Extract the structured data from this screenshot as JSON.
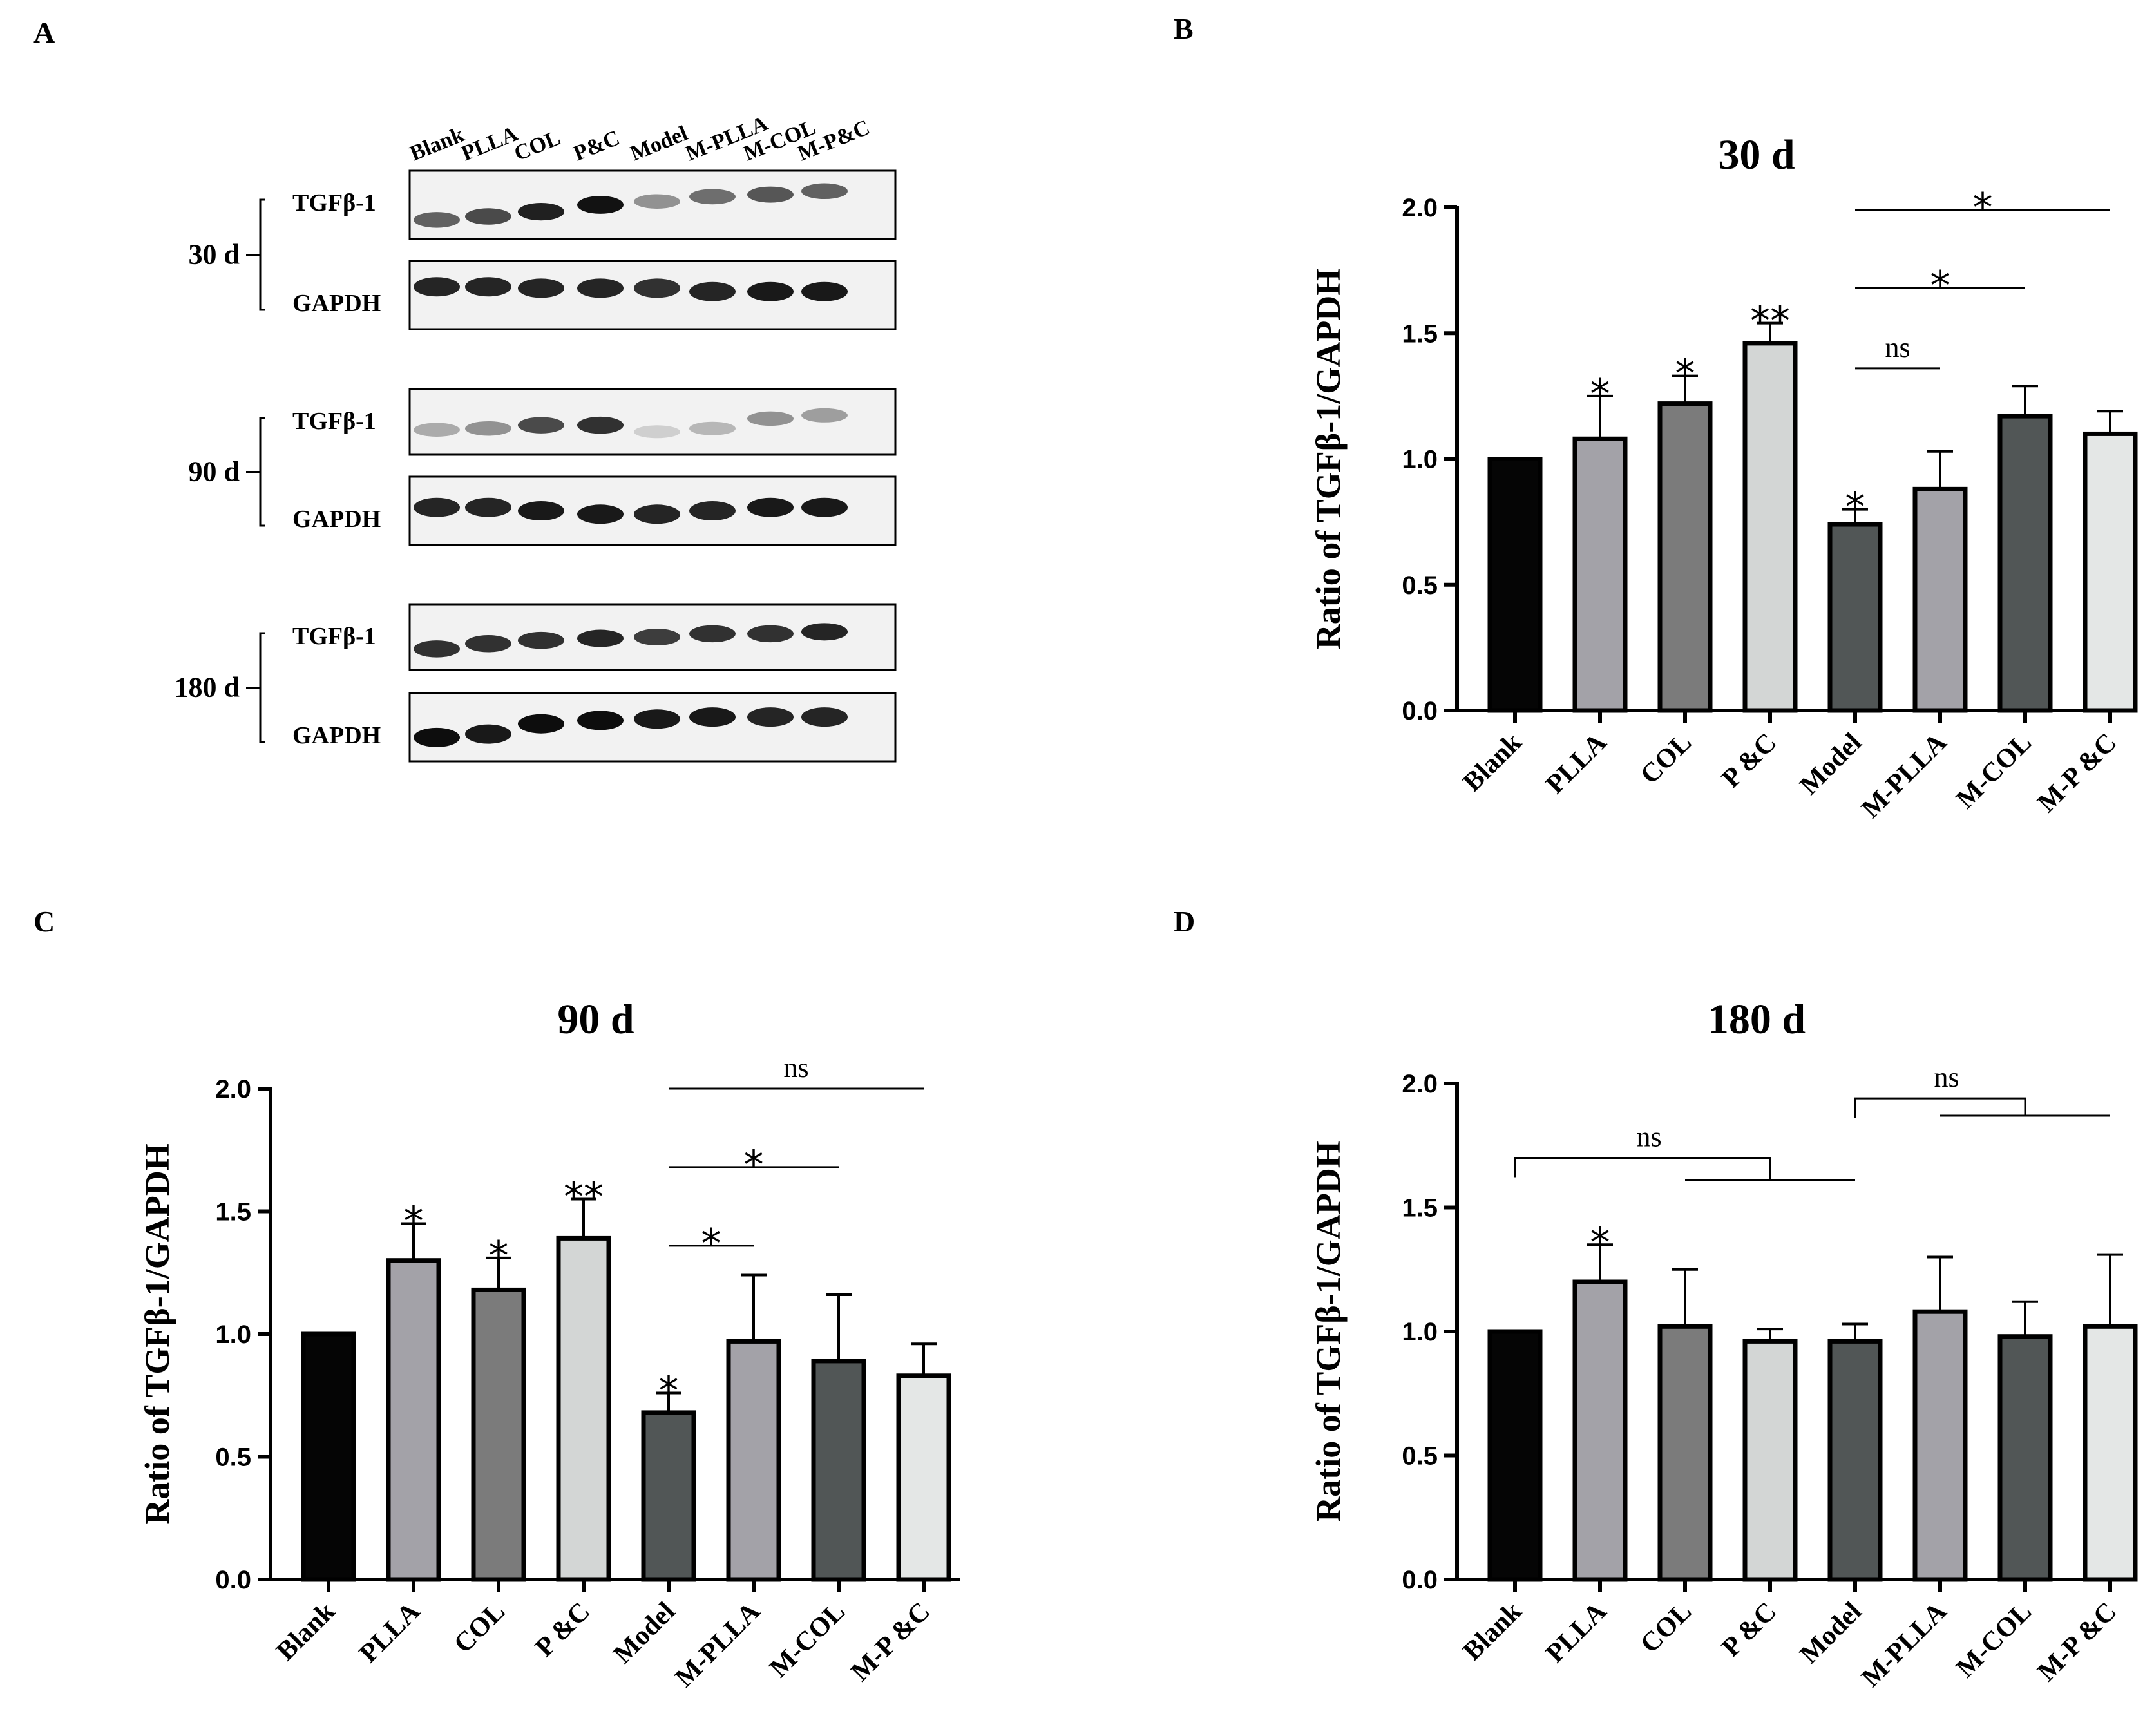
{
  "panel_labels": [
    "A",
    "B",
    "C",
    "D"
  ],
  "western_blot": {
    "lane_labels": [
      "Blank",
      "PLLA",
      "COL",
      "P&C",
      "Model",
      "M-PLLA",
      "M-COL",
      "M-P&C"
    ],
    "timepoints": [
      {
        "label": "30 d",
        "bands": [
          {
            "protein": "TGFβ-1"
          },
          {
            "protein": "GAPDH"
          }
        ]
      },
      {
        "label": "90 d",
        "bands": [
          {
            "protein": "TGFβ-1"
          },
          {
            "protein": "GAPDH"
          }
        ]
      },
      {
        "label": "180 d",
        "bands": [
          {
            "protein": "TGFβ-1"
          },
          {
            "protein": "GAPDH"
          }
        ]
      }
    ]
  },
  "chart_data": [
    {
      "type": "bar",
      "title": "30 d",
      "ylabel": "Ratio of  TGFβ-1/GAPDH",
      "xlabel": "",
      "ylim": [
        0,
        2.0
      ],
      "yticks": [
        "0.0",
        "0.5",
        "1.0",
        "1.5",
        "2.0"
      ],
      "categories": [
        "Blank",
        "PLLA",
        "COL",
        "P &C",
        "Model",
        "M-PLLA",
        "M-COL",
        "M-P &C"
      ],
      "values": [
        1.0,
        1.08,
        1.22,
        1.46,
        0.74,
        0.88,
        1.17,
        1.1
      ],
      "errors": [
        0,
        0.17,
        0.11,
        0.08,
        0.06,
        0.15,
        0.12,
        0.09
      ],
      "bar_annotations": [
        "",
        "*",
        "*",
        "**",
        "*",
        "",
        "",
        ""
      ],
      "comparisons": [
        {
          "from": 4,
          "to": 5,
          "label": "ns",
          "y": 1.36,
          "style": "line"
        },
        {
          "from": 4,
          "to": 6,
          "label": "*",
          "y": 1.68,
          "style": "line"
        },
        {
          "from": 4,
          "to": 7,
          "label": "*",
          "y": 1.99,
          "style": "line"
        }
      ],
      "colors": [
        "#050505",
        "#a3a2a8",
        "#7b7b7b",
        "#d3d6d5",
        "#515656",
        "#a3a2a8",
        "#515656",
        "#e4e7e6"
      ]
    },
    {
      "type": "bar",
      "title": "90 d",
      "ylabel": "Ratio of  TGFβ-1/GAPDH",
      "xlabel": "",
      "ylim": [
        0,
        2.0
      ],
      "yticks": [
        "0.0",
        "0.5",
        "1.0",
        "1.5",
        "2.0"
      ],
      "categories": [
        "Blank",
        "PLLA",
        "COL",
        "P &C",
        "Model",
        "M-PLLA",
        "M-COL",
        "M-P &C"
      ],
      "values": [
        1.0,
        1.3,
        1.18,
        1.39,
        0.68,
        0.97,
        0.89,
        0.83
      ],
      "errors": [
        0,
        0.15,
        0.13,
        0.16,
        0.08,
        0.27,
        0.27,
        0.13
      ],
      "bar_annotations": [
        "",
        "*",
        "*",
        "**",
        "*",
        "",
        "",
        ""
      ],
      "comparisons": [
        {
          "from": 4,
          "to": 5,
          "label": "*",
          "y": 1.36,
          "style": "line"
        },
        {
          "from": 4,
          "to": 6,
          "label": "*",
          "y": 1.68,
          "style": "line"
        },
        {
          "from": 4,
          "to": 7,
          "label": "ns",
          "y": 2.0,
          "style": "line"
        }
      ],
      "colors": [
        "#050505",
        "#a3a2a8",
        "#7b7b7b",
        "#d3d6d5",
        "#515656",
        "#a3a2a8",
        "#515656",
        "#e4e7e6"
      ]
    },
    {
      "type": "bar",
      "title": "180 d",
      "ylabel": "Ratio of  TGFβ-1/GAPDH",
      "xlabel": "",
      "ylim": [
        0,
        2.0
      ],
      "yticks": [
        "0.0",
        "0.5",
        "1.0",
        "1.5",
        "2.0"
      ],
      "categories": [
        "Blank",
        "PLLA",
        "COL",
        "P &C",
        "Model",
        "M-PLLA",
        "M-COL",
        "M-P &C"
      ],
      "values": [
        1.0,
        1.2,
        1.02,
        0.96,
        0.96,
        1.08,
        0.98,
        1.02
      ],
      "errors": [
        0,
        0.15,
        0.23,
        0.05,
        0.07,
        0.22,
        0.14,
        0.29
      ],
      "bar_annotations": [
        "",
        "*",
        "",
        "",
        "",
        "",
        "",
        ""
      ],
      "comparisons": [
        {
          "from": 0,
          "to_group": [
            2,
            4
          ],
          "label": "ns",
          "y": 1.7,
          "y2": 1.61,
          "style": "bracket"
        },
        {
          "from": 4,
          "to_group": [
            5,
            7
          ],
          "label": "ns",
          "y": 1.94,
          "y2": 1.87,
          "style": "bracket"
        }
      ],
      "colors": [
        "#050505",
        "#a3a2a8",
        "#7b7b7b",
        "#d3d6d5",
        "#515656",
        "#a3a2a8",
        "#515656",
        "#e4e7e6"
      ]
    }
  ]
}
